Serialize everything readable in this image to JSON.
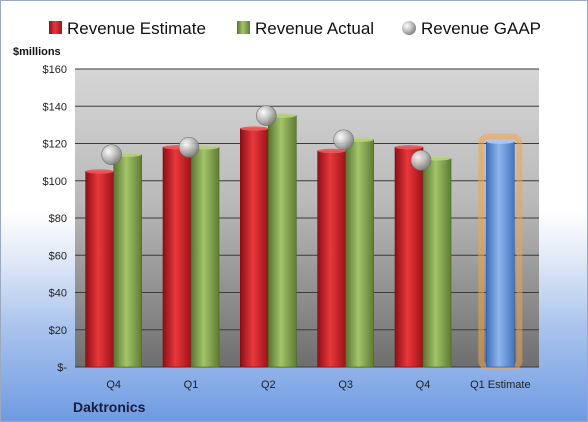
{
  "chart_data": {
    "type": "bar",
    "title": "",
    "unit_label": "$millions",
    "company": "Daktronics",
    "categories": [
      "Q4",
      "Q1",
      "Q2",
      "Q3",
      "Q4",
      "Q1 Estimate"
    ],
    "series": [
      {
        "name": "Revenue Estimate",
        "type": "bar",
        "color": "#cc1f25",
        "values": [
          105,
          118,
          128,
          116,
          118,
          null
        ]
      },
      {
        "name": "Revenue Actual",
        "type": "bar",
        "color": "#7fa24a",
        "values": [
          114,
          118,
          135,
          122,
          112,
          null
        ]
      },
      {
        "name": "Revenue GAAP",
        "type": "marker",
        "color": "#b8b8b8",
        "values": [
          114,
          118,
          135,
          122,
          111,
          null
        ]
      },
      {
        "name": "Q1 Estimate",
        "type": "bar",
        "color": "#5e8fd6",
        "highlight": "#f5a34a",
        "values": [
          null,
          null,
          null,
          null,
          null,
          121
        ]
      }
    ],
    "y_ticks": [
      "$-",
      "$20",
      "$40",
      "$60",
      "$80",
      "$100",
      "$120",
      "$140",
      "$160"
    ],
    "ylim": [
      0,
      160
    ],
    "grid": true,
    "legend": "top"
  }
}
